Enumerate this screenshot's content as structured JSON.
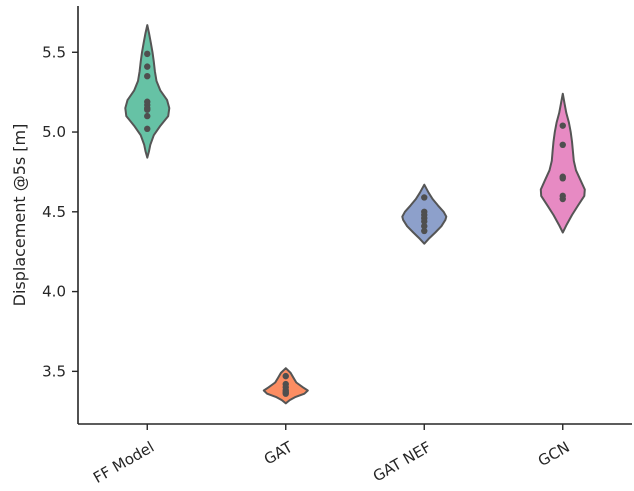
{
  "chart_data": {
    "type": "violin",
    "categories": [
      "FF Model",
      "GAT",
      "GAT NEF",
      "GCN"
    ],
    "ylabel": "Displacement @5s [m]",
    "xlabel": "",
    "ylim": [
      3.17,
      5.79
    ],
    "yticks": [
      3.5,
      4.0,
      4.5,
      5.0,
      5.5
    ],
    "grid": false,
    "series": [
      {
        "category": "FF Model",
        "color": "#66c2a5",
        "points": [
          5.49,
          5.41,
          5.35,
          5.19,
          5.17,
          5.15,
          5.14,
          5.1,
          5.02
        ],
        "range": [
          4.84,
          5.67
        ],
        "profile": [
          [
            4.84,
            0.0
          ],
          [
            4.88,
            0.08
          ],
          [
            4.92,
            0.14
          ],
          [
            4.98,
            0.3
          ],
          [
            5.04,
            0.6
          ],
          [
            5.1,
            0.95
          ],
          [
            5.15,
            1.0
          ],
          [
            5.2,
            0.9
          ],
          [
            5.26,
            0.6
          ],
          [
            5.32,
            0.42
          ],
          [
            5.38,
            0.35
          ],
          [
            5.44,
            0.3
          ],
          [
            5.5,
            0.24
          ],
          [
            5.56,
            0.16
          ],
          [
            5.62,
            0.08
          ],
          [
            5.67,
            0.0
          ]
        ]
      },
      {
        "category": "GAT",
        "color": "#fc8d62",
        "points": [
          3.47,
          3.42,
          3.4,
          3.38,
          3.37,
          3.36
        ],
        "range": [
          3.3,
          3.52
        ],
        "profile": [
          [
            3.3,
            0.0
          ],
          [
            3.32,
            0.18
          ],
          [
            3.34,
            0.45
          ],
          [
            3.36,
            0.85
          ],
          [
            3.38,
            1.0
          ],
          [
            3.4,
            0.78
          ],
          [
            3.43,
            0.48
          ],
          [
            3.46,
            0.35
          ],
          [
            3.49,
            0.22
          ],
          [
            3.52,
            0.0
          ]
        ]
      },
      {
        "category": "GAT NEF",
        "color": "#8da0cb",
        "points": [
          4.59,
          4.5,
          4.48,
          4.46,
          4.44,
          4.41,
          4.38
        ],
        "range": [
          4.3,
          4.67
        ],
        "profile": [
          [
            4.3,
            0.0
          ],
          [
            4.33,
            0.2
          ],
          [
            4.37,
            0.5
          ],
          [
            4.41,
            0.78
          ],
          [
            4.45,
            0.96
          ],
          [
            4.47,
            1.0
          ],
          [
            4.5,
            0.88
          ],
          [
            4.54,
            0.62
          ],
          [
            4.58,
            0.38
          ],
          [
            4.62,
            0.2
          ],
          [
            4.67,
            0.0
          ]
        ]
      },
      {
        "category": "GCN",
        "color": "#e78ac3",
        "points": [
          5.04,
          4.92,
          4.72,
          4.71,
          4.6,
          4.58
        ],
        "range": [
          4.37,
          5.24
        ],
        "profile": [
          [
            4.37,
            0.0
          ],
          [
            4.42,
            0.18
          ],
          [
            4.48,
            0.42
          ],
          [
            4.54,
            0.7
          ],
          [
            4.6,
            0.98
          ],
          [
            4.64,
            1.0
          ],
          [
            4.7,
            0.8
          ],
          [
            4.76,
            0.6
          ],
          [
            4.82,
            0.5
          ],
          [
            4.88,
            0.46
          ],
          [
            4.94,
            0.42
          ],
          [
            5.0,
            0.36
          ],
          [
            5.06,
            0.28
          ],
          [
            5.12,
            0.16
          ],
          [
            5.18,
            0.08
          ],
          [
            5.24,
            0.0
          ]
        ]
      }
    ]
  }
}
